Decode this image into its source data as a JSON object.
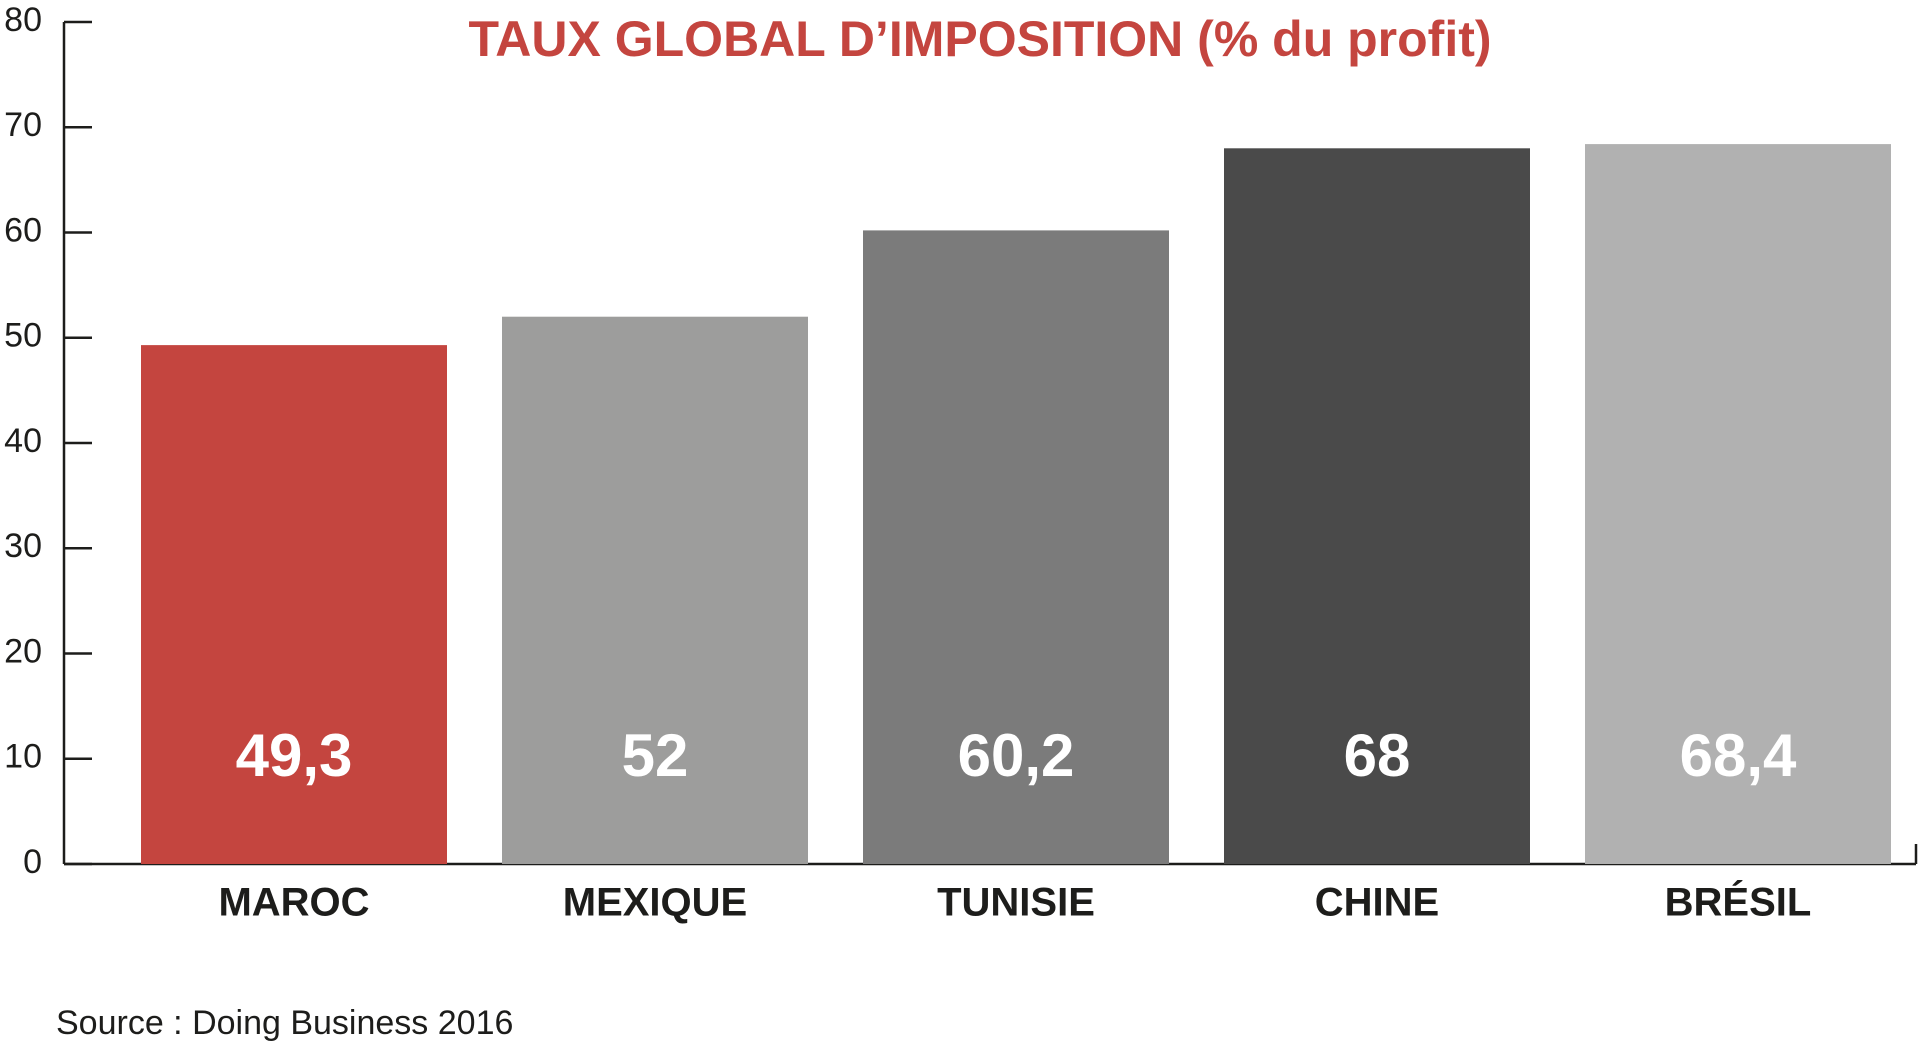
{
  "chart_data": {
    "type": "bar",
    "title": "TAUX GLOBAL D’IMPOSITION (% du profit)",
    "categories": [
      "MAROC",
      "MEXIQUE",
      "TUNISIE",
      "CHINE",
      "BRÉSIL"
    ],
    "values": [
      49.3,
      52,
      60.2,
      68,
      68.4
    ],
    "value_labels": [
      "49,3",
      "52",
      "60,2",
      "68",
      "68,4"
    ],
    "colors": [
      "#c4453f",
      "#9d9d9c",
      "#7b7b7b",
      "#4a4a4a",
      "#b1b1b1"
    ],
    "ylim": [
      0,
      80
    ],
    "yticks": [
      0,
      10,
      20,
      30,
      40,
      50,
      60,
      70,
      80
    ],
    "source": "Source : Doing Business 2016"
  }
}
